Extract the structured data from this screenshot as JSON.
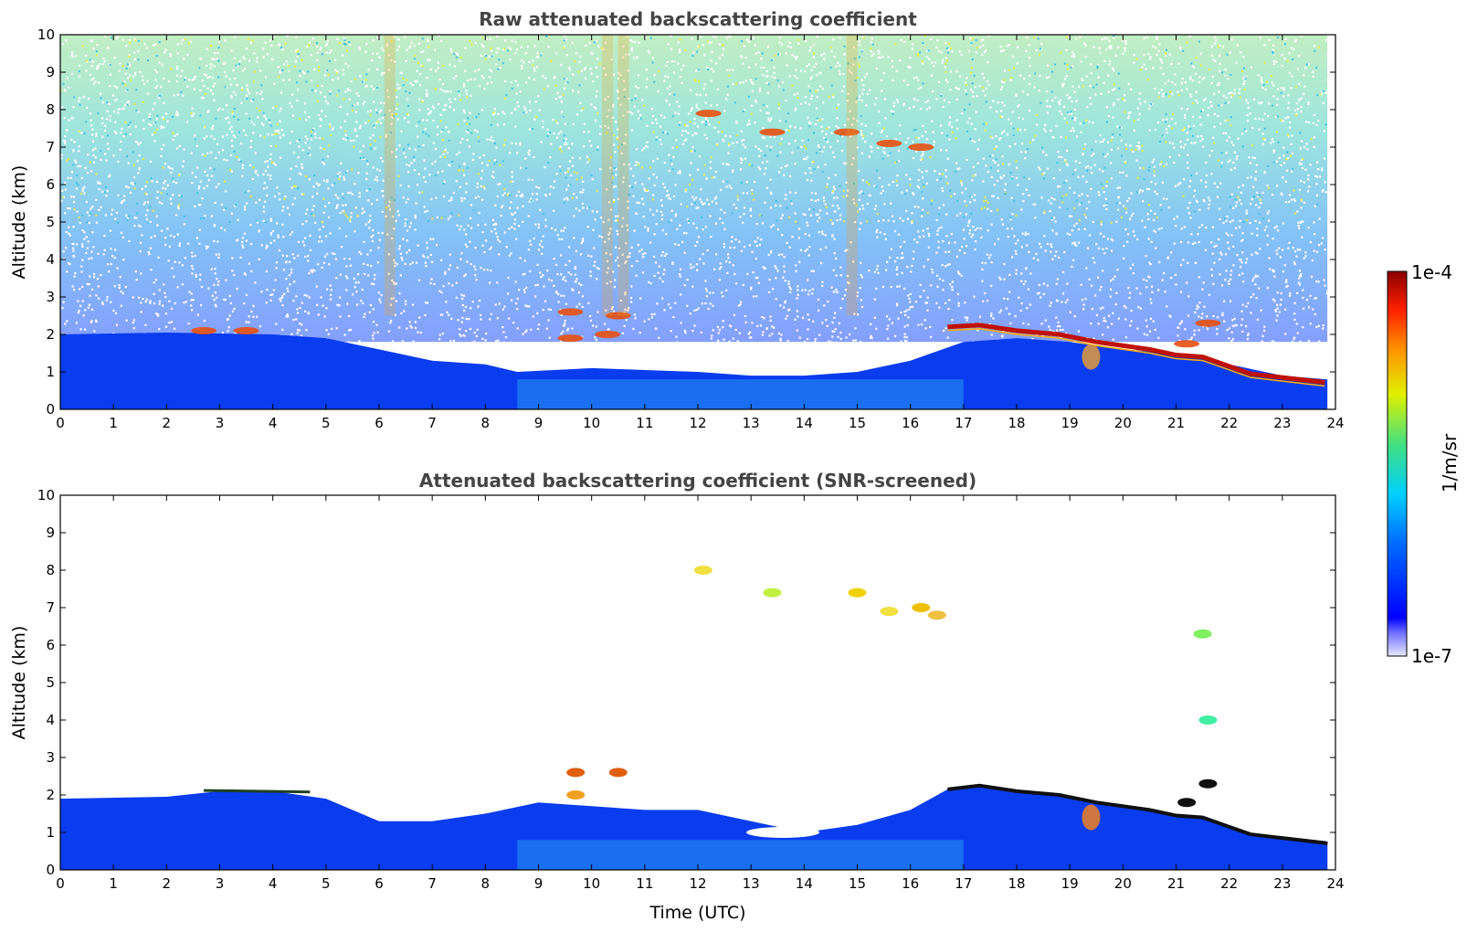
{
  "chart_data": [
    {
      "type": "heatmap",
      "title": "Raw attenuated backscattering coefficient",
      "ylabel": "Altitude (km)",
      "xlabel": "",
      "xlim": [
        0,
        24
      ],
      "ylim": [
        0,
        10
      ],
      "x_ticks": [
        "0",
        "1",
        "2",
        "3",
        "4",
        "5",
        "6",
        "7",
        "8",
        "9",
        "10",
        "11",
        "12",
        "13",
        "14",
        "15",
        "16",
        "17",
        "18",
        "19",
        "20",
        "21",
        "22",
        "23",
        "24"
      ],
      "y_ticks": [
        "0",
        "1",
        "2",
        "3",
        "4",
        "5",
        "6",
        "7",
        "8",
        "9",
        "10"
      ],
      "features": [
        {
          "x": [
            0,
            23.8
          ],
          "y_top_km": 2.0,
          "note_value": "boundary layer"
        },
        {
          "x": [
            16.7,
            23.8
          ],
          "y_start_km": 2.2,
          "y_end_km": 0.7,
          "value": "cloud"
        }
      ]
    },
    {
      "type": "heatmap",
      "title": "Attenuated backscattering coefficient (SNR-screened)",
      "ylabel": "Altitude (km)",
      "xlabel": "Time (UTC)",
      "xlim": [
        0,
        24
      ],
      "ylim": [
        0,
        10
      ],
      "x_ticks": [
        "0",
        "1",
        "2",
        "3",
        "4",
        "5",
        "6",
        "7",
        "8",
        "9",
        "10",
        "11",
        "12",
        "13",
        "14",
        "15",
        "16",
        "17",
        "18",
        "19",
        "20",
        "21",
        "22",
        "23",
        "24"
      ],
      "y_ticks": [
        "0",
        "1",
        "2",
        "3",
        "4",
        "5",
        "6",
        "7",
        "8",
        "9",
        "10"
      ]
    }
  ],
  "colorbar": {
    "label": "1/m/sr",
    "max_label": "1e-4",
    "min_label": "1e-7",
    "range": [
      1e-07,
      0.0001
    ],
    "scale": "log",
    "colormap": "jet"
  }
}
